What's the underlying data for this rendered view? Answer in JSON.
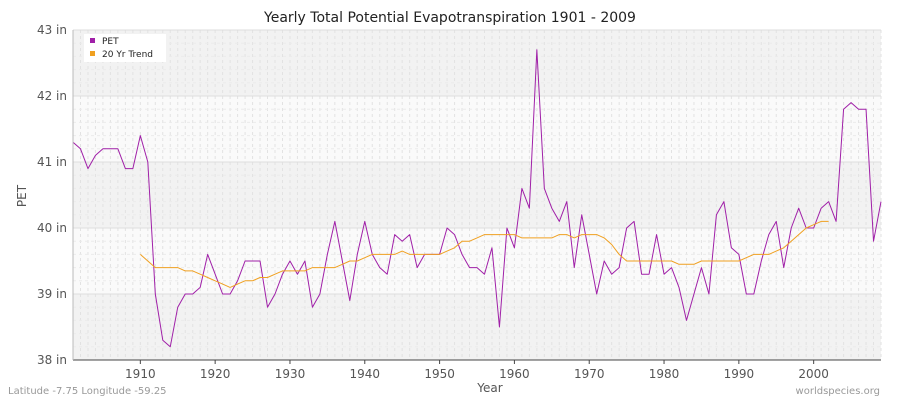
{
  "chart_data": {
    "type": "line",
    "title": "Yearly Total Potential Evapotranspiration 1901 - 2009",
    "xlabel": "Year",
    "ylabel": "PET",
    "xlim": [
      1901,
      2009
    ],
    "ylim": [
      38,
      43
    ],
    "yticks": [
      {
        "value": 38,
        "label": "38 in"
      },
      {
        "value": 39,
        "label": "39 in"
      },
      {
        "value": 40,
        "label": "40 in"
      },
      {
        "value": 41,
        "label": "41 in"
      },
      {
        "value": 42,
        "label": "42 in"
      },
      {
        "value": 43,
        "label": "43 in"
      }
    ],
    "xticks": [
      {
        "value": 1910,
        "label": "1910"
      },
      {
        "value": 1920,
        "label": "1920"
      },
      {
        "value": 1930,
        "label": "1930"
      },
      {
        "value": 1940,
        "label": "1940"
      },
      {
        "value": 1950,
        "label": "1950"
      },
      {
        "value": 1960,
        "label": "1960"
      },
      {
        "value": 1970,
        "label": "1970"
      },
      {
        "value": 1980,
        "label": "1980"
      },
      {
        "value": 1990,
        "label": "1990"
      },
      {
        "value": 2000,
        "label": "2000"
      }
    ],
    "grid": true,
    "legend": "top-left",
    "series": [
      {
        "name": "PET",
        "color": "#a020a8",
        "x_start": 1901,
        "values": [
          41.3,
          41.2,
          40.9,
          41.1,
          41.2,
          41.2,
          41.2,
          40.9,
          40.9,
          41.4,
          41.0,
          39.0,
          38.3,
          38.2,
          38.8,
          39.0,
          39.0,
          39.1,
          39.6,
          39.3,
          39.0,
          39.0,
          39.2,
          39.5,
          39.5,
          39.5,
          38.8,
          39.0,
          39.3,
          39.5,
          39.3,
          39.5,
          38.8,
          39.0,
          39.6,
          40.1,
          39.5,
          38.9,
          39.6,
          40.1,
          39.6,
          39.4,
          39.3,
          39.9,
          39.8,
          39.9,
          39.4,
          39.6,
          39.6,
          39.6,
          40.0,
          39.9,
          39.6,
          39.4,
          39.4,
          39.3,
          39.7,
          38.5,
          40.0,
          39.7,
          40.6,
          40.3,
          42.7,
          40.6,
          40.3,
          40.1,
          40.4,
          39.4,
          40.2,
          39.6,
          39.0,
          39.5,
          39.3,
          39.4,
          40.0,
          40.1,
          39.3,
          39.3,
          39.9,
          39.3,
          39.4,
          39.1,
          38.6,
          39.0,
          39.4,
          39.0,
          40.2,
          40.4,
          39.7,
          39.6,
          39.0,
          39.0,
          39.5,
          39.9,
          40.1,
          39.4,
          40.0,
          40.3,
          40.0,
          40.0,
          40.3,
          40.4,
          40.1,
          41.8,
          41.9,
          41.8,
          41.8,
          39.8,
          40.4
        ]
      },
      {
        "name": "20 Yr Trend",
        "color": "#f0a020",
        "x_start": 1910,
        "values": [
          39.6,
          39.5,
          39.4,
          39.4,
          39.4,
          39.4,
          39.35,
          39.35,
          39.3,
          39.25,
          39.2,
          39.15,
          39.1,
          39.15,
          39.2,
          39.2,
          39.25,
          39.25,
          39.3,
          39.35,
          39.35,
          39.35,
          39.35,
          39.4,
          39.4,
          39.4,
          39.4,
          39.45,
          39.5,
          39.5,
          39.55,
          39.6,
          39.6,
          39.6,
          39.6,
          39.65,
          39.6,
          39.6,
          39.6,
          39.6,
          39.6,
          39.65,
          39.7,
          39.8,
          39.8,
          39.85,
          39.9,
          39.9,
          39.9,
          39.9,
          39.9,
          39.85,
          39.85,
          39.85,
          39.85,
          39.85,
          39.9,
          39.9,
          39.85,
          39.9,
          39.9,
          39.9,
          39.85,
          39.75,
          39.6,
          39.5,
          39.5,
          39.5,
          39.5,
          39.5,
          39.5,
          39.5,
          39.45,
          39.45,
          39.45,
          39.5,
          39.5,
          39.5,
          39.5,
          39.5,
          39.5,
          39.55,
          39.6,
          39.6,
          39.6,
          39.65,
          39.7,
          39.8,
          39.9,
          40.0,
          40.05,
          40.1,
          40.1
        ]
      }
    ]
  },
  "footer": {
    "left": "Latitude -7.75 Longitude -59.25",
    "right": "worldspecies.org"
  }
}
